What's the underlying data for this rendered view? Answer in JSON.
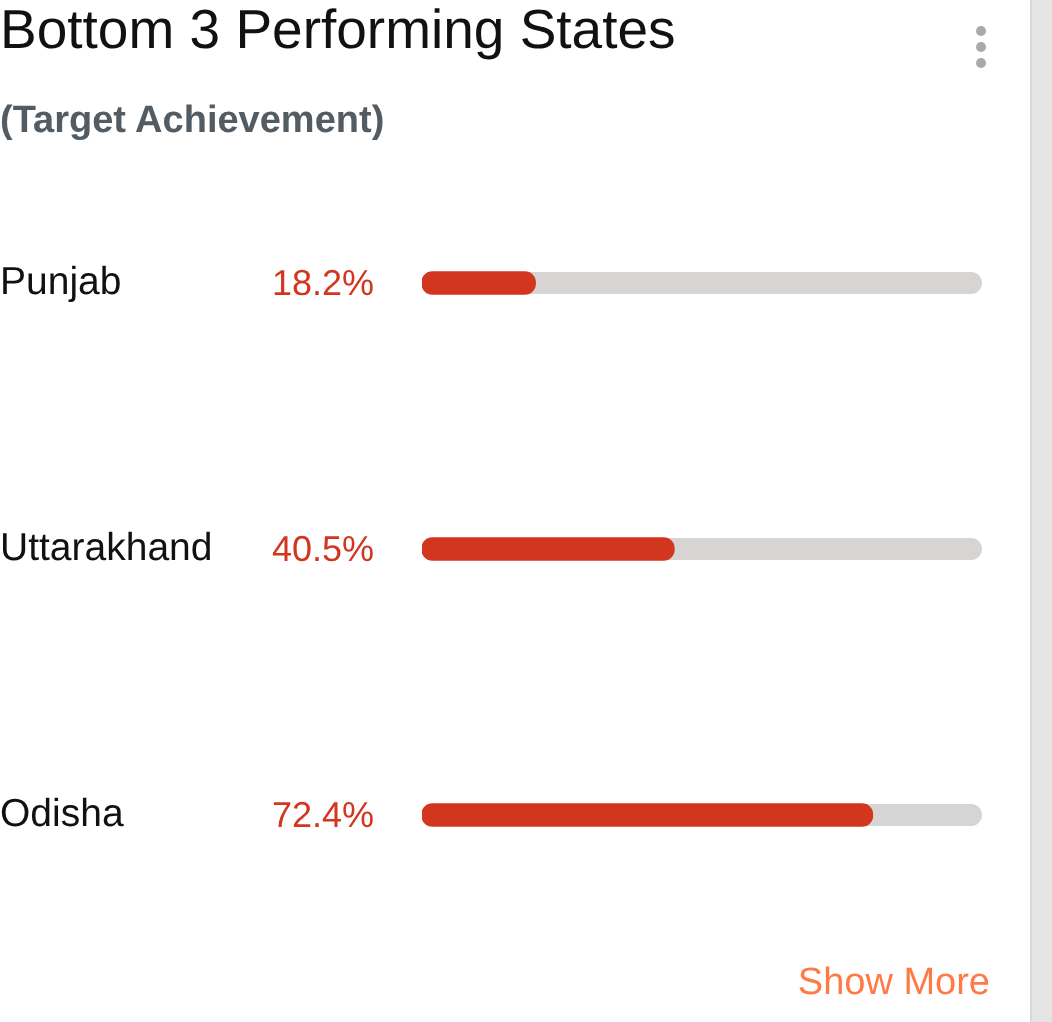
{
  "chart_data": {
    "type": "bar",
    "orientation": "horizontal",
    "title": "Bottom 3 Performing States",
    "subtitle": "(Target Achievement)",
    "categories": [
      "Punjab",
      "Uttarakhand",
      "Odisha"
    ],
    "values": [
      18.2,
      40.5,
      72.4
    ],
    "color": "#d3361f",
    "value_labels": [
      "18.2%",
      "40.5%",
      "72.4%"
    ],
    "xlim": [
      0,
      90
    ],
    "tick_labels": "y",
    "grid": false,
    "legend": false,
    "annotations": [
      "Show More"
    ]
  }
}
